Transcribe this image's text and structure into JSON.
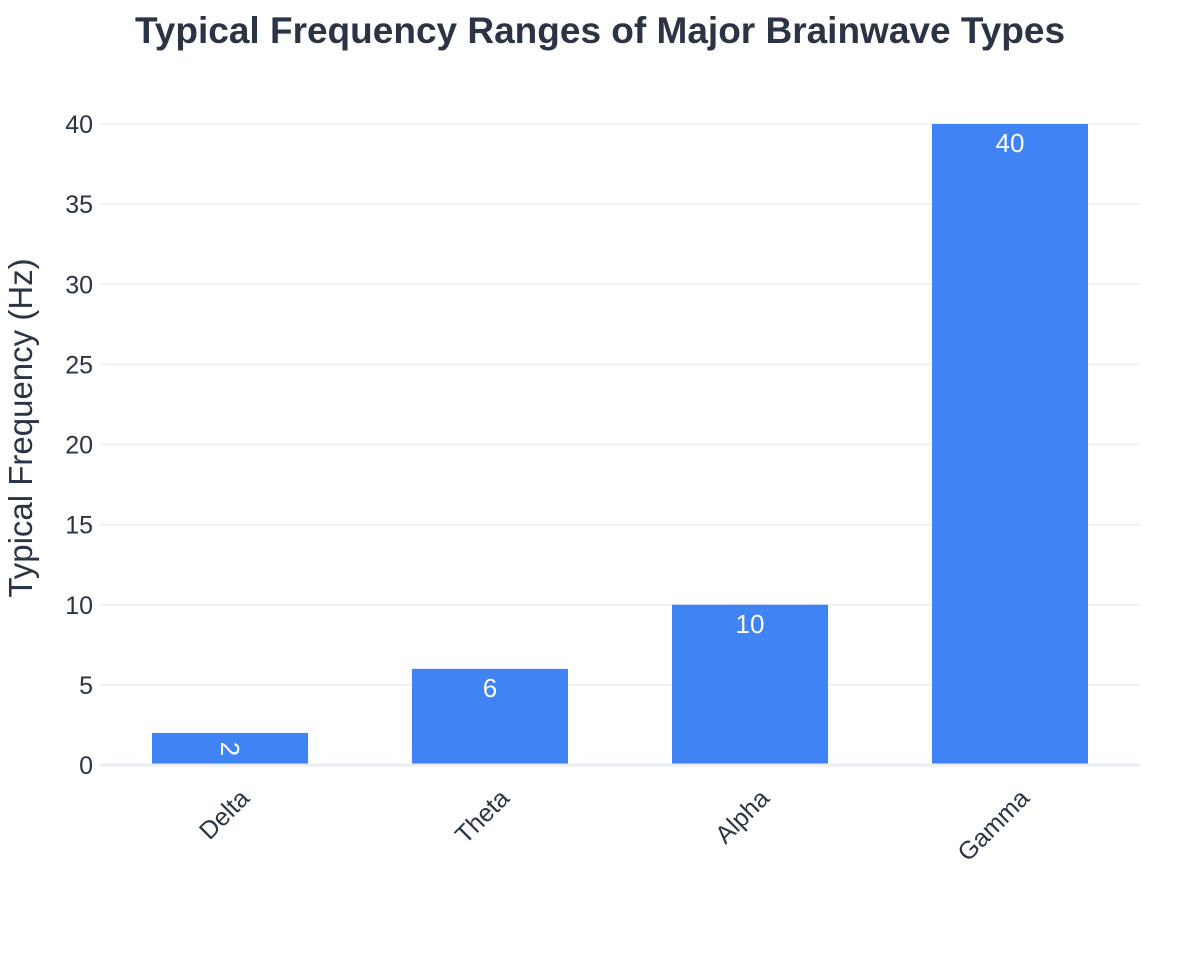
{
  "chart_data": {
    "type": "bar",
    "title": "Typical Frequency Ranges of Major Brainwave Types",
    "xlabel": "",
    "ylabel": "Typical Frequency (Hz)",
    "categories": [
      "Delta",
      "Theta",
      "Alpha",
      "Gamma"
    ],
    "values": [
      2,
      6,
      10,
      40
    ],
    "data_labels": [
      "2",
      "6",
      "10",
      "40"
    ],
    "ylim": [
      0,
      40
    ],
    "yticks": [
      0,
      5,
      10,
      15,
      20,
      25,
      30,
      35,
      40
    ],
    "ytick_labels": [
      "0",
      "5",
      "10",
      "15",
      "20",
      "25",
      "30",
      "35",
      "40"
    ],
    "grid": true,
    "legend": "none",
    "x_tick_rotation": "diagonal",
    "bar_color": "#3f83f4",
    "grid_color": "#e9eef4",
    "text_color": "#2a3444"
  }
}
